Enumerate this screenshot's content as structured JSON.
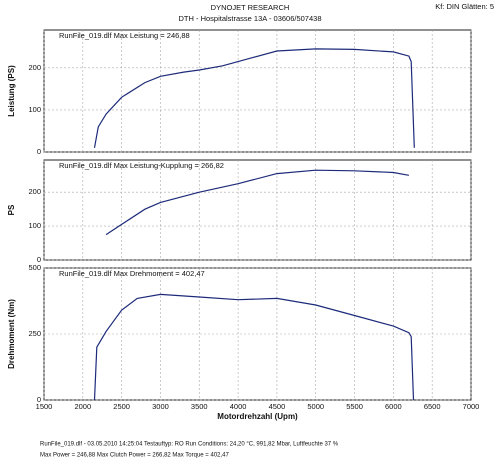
{
  "header": {
    "title": "DYNOJET RESEARCH",
    "subtitle": "DTH - Hospitalstrasse 13A - 03606/507438",
    "settings": "Kf: DIN  Glätten: 5"
  },
  "footer": {
    "lines": [
      "RunFile_019.dlf - 03.05.2010 14:25:04   Testauftyp: RO   Run Conditions: 24,20 °C, 991,82 Mbar, Luftfeuchte 37 %",
      "Max Power = 246,88  Max Clutch Power = 266,82  Max Torque = 402,47"
    ]
  },
  "chart_data": [
    {
      "type": "line",
      "y_label": "Leistung (PS)",
      "annotation": "RunFile_019.dlf Max Leistung = 246,88",
      "grid": true,
      "xlim": [
        1500,
        7000
      ],
      "xticks": [
        1500,
        2000,
        2500,
        3000,
        3500,
        4000,
        4500,
        5000,
        5500,
        6000,
        6500,
        7000
      ],
      "ylim": [
        0,
        290
      ],
      "yticks": [
        0,
        100,
        200
      ],
      "series": [
        {
          "name": "RunFile_019.dlf",
          "color": "#1c2a7a",
          "x": [
            2150,
            2200,
            2300,
            2500,
            2800,
            3000,
            3300,
            3500,
            3800,
            4200,
            4500,
            5000,
            5500,
            6000,
            6200,
            6230,
            6270
          ],
          "values": [
            10,
            60,
            90,
            130,
            165,
            180,
            190,
            195,
            205,
            225,
            240,
            245,
            244,
            238,
            228,
            215,
            10
          ]
        }
      ]
    },
    {
      "type": "line",
      "y_label": "PS",
      "annotation": "RunFile_019.dlf Max Leistung-Kupplung = 266,82",
      "grid": true,
      "xlim": [
        1500,
        7000
      ],
      "xticks": [
        1500,
        2000,
        2500,
        3000,
        3500,
        4000,
        4500,
        5000,
        5500,
        6000,
        6500,
        7000
      ],
      "ylim": [
        0,
        295
      ],
      "yticks": [
        0,
        100,
        200
      ],
      "series": [
        {
          "name": "RunFile_019.dlf",
          "color": "#1c2a7a",
          "x": [
            2300,
            2500,
            2800,
            3000,
            3500,
            4000,
            4500,
            5000,
            5500,
            6000,
            6200
          ],
          "values": [
            75,
            105,
            150,
            170,
            200,
            225,
            255,
            265,
            263,
            258,
            250
          ]
        }
      ]
    },
    {
      "type": "line",
      "y_label": "Drehmoment (Nm)",
      "x_label": "Motordrehzahl (Upm)",
      "annotation": "RunFile_019.dlf Max Drehmoment = 402,47",
      "grid": true,
      "xlim": [
        1500,
        7000
      ],
      "xticks": [
        1500,
        2000,
        2500,
        3000,
        3500,
        4000,
        4500,
        5000,
        5500,
        6000,
        6500,
        7000
      ],
      "ylim": [
        0,
        500
      ],
      "yticks": [
        0,
        250,
        500
      ],
      "series": [
        {
          "name": "RunFile_019.dlf",
          "color": "#1c2a7a",
          "x": [
            2150,
            2180,
            2300,
            2500,
            2700,
            3000,
            3500,
            4000,
            4500,
            5000,
            5500,
            6000,
            6200,
            6230,
            6260
          ],
          "values": [
            0,
            200,
            260,
            340,
            385,
            400,
            390,
            380,
            385,
            360,
            320,
            280,
            255,
            240,
            0
          ]
        }
      ]
    }
  ]
}
